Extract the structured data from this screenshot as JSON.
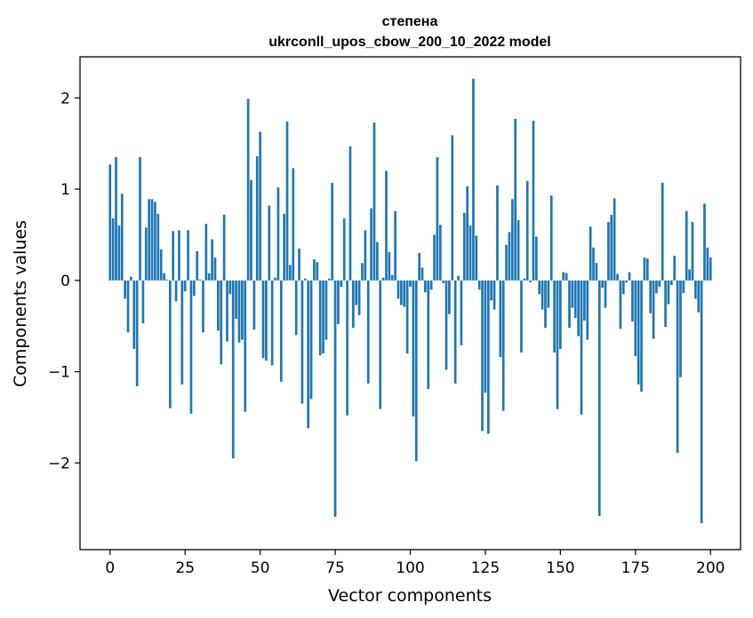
{
  "chart_data": {
    "type": "bar",
    "title_line1": "степена",
    "title_line2": "ukrconll_upos_cbow_200_10_2022 model",
    "xlabel": "Vector components",
    "ylabel": "Components values",
    "xlim": [
      -10,
      210
    ],
    "ylim": [
      -2.95,
      2.45
    ],
    "xticks": [
      0,
      25,
      50,
      75,
      100,
      125,
      150,
      175,
      200
    ],
    "xtick_labels": [
      "0",
      "25",
      "50",
      "75",
      "100",
      "125",
      "150",
      "175",
      "200"
    ],
    "yticks": [
      -2,
      -1,
      0,
      1,
      2
    ],
    "ytick_labels": [
      "−2",
      "−1",
      "0",
      "1",
      "2"
    ],
    "bar_color": "#1f77b4",
    "values": [
      1.27,
      0.68,
      1.35,
      0.6,
      0.95,
      -0.2,
      -0.57,
      0.04,
      -0.75,
      -1.16,
      1.35,
      -0.47,
      0.58,
      0.89,
      0.89,
      0.86,
      0.73,
      0.34,
      0.08,
      0.01,
      -1.4,
      0.54,
      -0.23,
      0.55,
      -1.14,
      -0.12,
      0.55,
      -1.46,
      -0.17,
      0.32,
      0.01,
      -0.57,
      0.62,
      0.08,
      0.45,
      0.25,
      -0.55,
      -0.92,
      0.72,
      -0.67,
      -0.15,
      -1.95,
      -0.42,
      -0.68,
      -0.65,
      -1.44,
      1.99,
      1.1,
      -0.54,
      1.36,
      1.63,
      -0.85,
      -0.88,
      0.82,
      -0.93,
      0.03,
      1.02,
      -1.11,
      0.73,
      1.74,
      0.17,
      1.23,
      -0.6,
      0.35,
      -1.35,
      0.02,
      -1.62,
      -1.3,
      0.23,
      0.2,
      -0.82,
      -0.8,
      -0.65,
      0.02,
      1.07,
      -2.59,
      -0.48,
      -0.07,
      0.68,
      -1.48,
      1.47,
      -0.52,
      -0.27,
      -0.38,
      0.19,
      0.55,
      -1.13,
      0.79,
      1.73,
      0.42,
      -1.41,
      0.03,
      1.2,
      0.31,
      0.06,
      0.76,
      -0.2,
      -0.27,
      -0.29,
      -0.8,
      -0.07,
      -1.49,
      -1.98,
      0.3,
      0.14,
      -0.13,
      -1.19,
      -0.1,
      0.5,
      1.35,
      0.61,
      -0.03,
      -0.98,
      -0.37,
      1.59,
      -1.13,
      0.05,
      -0.71,
      0.74,
      1.03,
      0.6,
      2.21,
      0.49,
      -0.1,
      -1.65,
      -1.23,
      -1.68,
      -0.22,
      -0.32,
      1.04,
      -0.84,
      -1.43,
      0.39,
      0.53,
      0.89,
      1.77,
      0.66,
      -0.79,
      0.02,
      1.09,
      -0.02,
      1.75,
      0.48,
      -0.15,
      -0.32,
      -0.52,
      -0.3,
      0.93,
      -0.79,
      -1.41,
      -0.75,
      0.09,
      0.08,
      -0.52,
      -0.3,
      -0.41,
      -0.61,
      -1.47,
      -0.44,
      -0.65,
      0.59,
      0.36,
      0.19,
      -2.58,
      -0.08,
      -0.3,
      0.64,
      0.72,
      0.9,
      0.07,
      -0.53,
      -0.15,
      -0.02,
      0.09,
      -0.45,
      -0.83,
      -1.14,
      -1.22,
      0.25,
      0.24,
      -0.36,
      -0.64,
      -0.14,
      -0.07,
      1.07,
      -0.51,
      -0.26,
      -0.05,
      0.27,
      -1.89,
      -1.06,
      -0.14,
      0.76,
      0.12,
      0.64,
      -0.2,
      -0.35,
      -2.66,
      0.84,
      0.36,
      0.25
    ]
  }
}
